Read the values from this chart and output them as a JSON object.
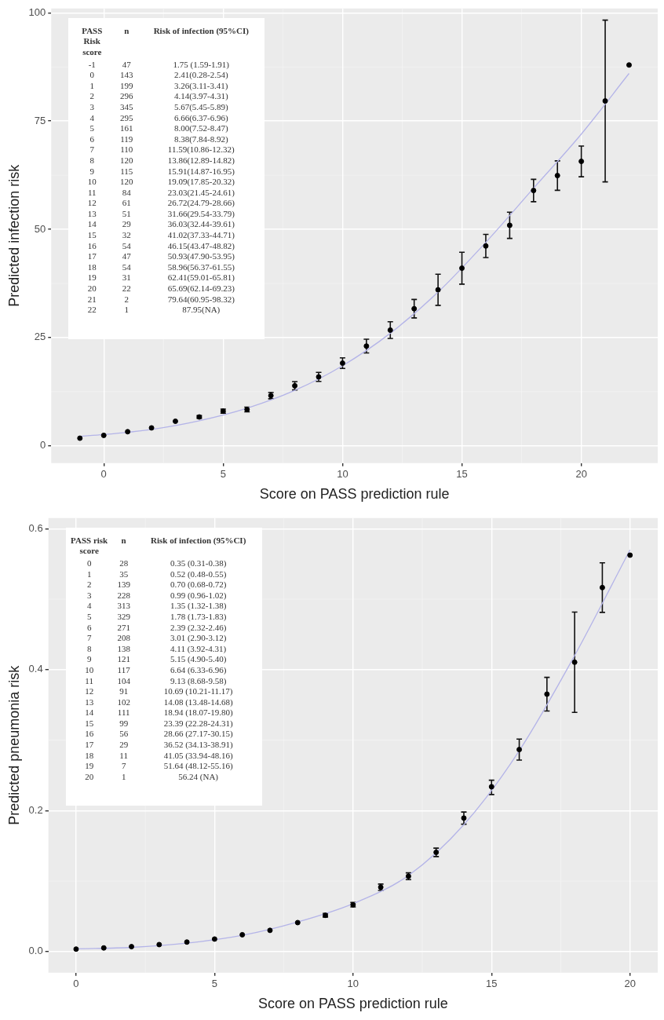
{
  "chart_data": [
    {
      "type": "scatter",
      "xlabel": "Score on PASS prediction rule",
      "ylabel": "Predicted infection risk",
      "xlim": [
        -2.2,
        23.2
      ],
      "xticks": [
        0,
        5,
        10,
        15,
        20
      ],
      "ylim": [
        -4,
        101
      ],
      "yticks": [
        0,
        25,
        50,
        75,
        100
      ],
      "grid": true,
      "legend": false,
      "series": [
        {
          "type": "scatter",
          "marker": "circle",
          "color": "#000000",
          "x": [
            -1,
            0,
            1,
            2,
            3,
            4,
            5,
            6,
            7,
            8,
            9,
            10,
            11,
            12,
            13,
            14,
            15,
            16,
            17,
            18,
            19,
            20,
            21,
            22
          ],
          "values": [
            1.75,
            2.41,
            3.26,
            4.14,
            5.67,
            6.66,
            8.0,
            8.38,
            11.59,
            13.86,
            15.91,
            19.09,
            23.03,
            26.72,
            31.66,
            36.03,
            41.02,
            46.15,
            50.93,
            58.96,
            62.41,
            65.69,
            79.64,
            87.95
          ],
          "errors": [
            [
              1.59,
              1.91
            ],
            null,
            [
              3.11,
              3.41
            ],
            [
              3.97,
              4.31
            ],
            [
              5.45,
              5.89
            ],
            [
              6.37,
              6.96
            ],
            [
              7.52,
              8.47
            ],
            [
              7.84,
              8.92
            ],
            [
              10.86,
              12.32
            ],
            [
              12.89,
              14.82
            ],
            [
              14.87,
              16.95
            ],
            [
              17.85,
              20.32
            ],
            [
              21.45,
              24.61
            ],
            [
              24.79,
              28.66
            ],
            [
              29.54,
              33.79
            ],
            [
              32.44,
              39.61
            ],
            [
              37.33,
              44.71
            ],
            [
              43.47,
              48.82
            ],
            [
              47.9,
              53.95
            ],
            [
              56.37,
              61.55
            ],
            [
              59.01,
              65.81
            ],
            [
              62.14,
              69.23
            ],
            [
              60.95,
              98.32
            ],
            null
          ]
        },
        {
          "type": "line",
          "marker": "none",
          "color": "#b4b4e8",
          "x": [
            -1,
            0,
            2,
            4,
            6,
            8,
            10,
            12,
            14,
            16,
            18,
            20,
            22
          ],
          "values": [
            2.2,
            2.6,
            3.8,
            5.8,
            8.7,
            12.8,
            18.5,
            26,
            35.5,
            47,
            59.5,
            72,
            86
          ]
        }
      ],
      "annotations": [
        "PASS Risk score",
        "n",
        "Risk of infection (95%CI)",
        "-1",
        "47",
        "1.75 (1.59-1.91)",
        "0",
        "143",
        "2.41(0.28-2.54)",
        "1",
        "199",
        "3.26(3.11-3.41)",
        "2",
        "296",
        "4.14(3.97-4.31)",
        "3",
        "345",
        "5.67(5.45-5.89)",
        "4",
        "295",
        "6.66(6.37-6.96)",
        "5",
        "161",
        "8.00(7.52-8.47)",
        "6",
        "119",
        "8.38(7.84-8.92)",
        "7",
        "110",
        "11.59(10.86-12.32)",
        "8",
        "120",
        "13.86(12.89-14.82)",
        "9",
        "115",
        "15.91(14.87-16.95)",
        "10",
        "120",
        "19.09(17.85-20.32)",
        "11",
        "84",
        "23.03(21.45-24.61)",
        "12",
        "61",
        "26.72(24.79-28.66)",
        "13",
        "51",
        "31.66(29.54-33.79)",
        "14",
        "29",
        "36.03(32.44-39.61)",
        "15",
        "32",
        "41.02(37.33-44.71)",
        "16",
        "54",
        "46.15(43.47-48.82)",
        "17",
        "47",
        "50.93(47.90-53.95)",
        "18",
        "54",
        "58.96(56.37-61.55)",
        "19",
        "31",
        "62.41(59.01-65.81)",
        "20",
        "22",
        "65.69(62.14-69.23)",
        "21",
        "2",
        "79.64(60.95-98.32)",
        "22",
        "1",
        "87.95(NA)"
      ]
    },
    {
      "type": "scatter",
      "xlabel": "Score on PASS prediction rule",
      "ylabel": "Predicted pneumonia risk",
      "xlim": [
        -1,
        21
      ],
      "xticks": [
        0,
        5,
        10,
        15,
        20
      ],
      "ylim": [
        -0.03,
        0.615
      ],
      "yticks": [
        {
          "value": 0,
          "label": "0.0"
        },
        {
          "value": 0.2,
          "label": "0.2"
        },
        {
          "value": 0.4,
          "label": "0.4"
        },
        {
          "value": 0.6,
          "label": "0.6"
        }
      ],
      "grid": true,
      "legend": false,
      "series": [
        {
          "type": "scatter",
          "marker": "circle",
          "color": "#000000",
          "x": [
            0,
            1,
            2,
            3,
            4,
            5,
            6,
            7,
            8,
            9,
            10,
            11,
            12,
            13,
            14,
            15,
            16,
            17,
            18,
            19,
            20
          ],
          "values": [
            0.0035,
            0.0052,
            0.007,
            0.0099,
            0.0135,
            0.0178,
            0.0239,
            0.0301,
            0.0411,
            0.0515,
            0.0664,
            0.0913,
            0.1069,
            0.1408,
            0.1894,
            0.2339,
            0.2866,
            0.3652,
            0.4105,
            0.5164,
            0.5624
          ],
          "errors": [
            null,
            null,
            null,
            null,
            null,
            null,
            null,
            null,
            null,
            [
              0.049,
              0.054
            ],
            [
              0.0633,
              0.0696
            ],
            [
              0.0868,
              0.0958
            ],
            [
              0.1021,
              0.1117
            ],
            [
              0.1348,
              0.1468
            ],
            [
              0.1807,
              0.198
            ],
            [
              0.2228,
              0.2431
            ],
            [
              0.2717,
              0.3015
            ],
            [
              0.3413,
              0.3891
            ],
            [
              0.3394,
              0.4816
            ],
            [
              0.4812,
              0.5516
            ],
            null
          ]
        },
        {
          "type": "line",
          "marker": "none",
          "color": "#b4b4e8",
          "x": [
            0,
            2,
            4,
            6,
            8,
            10,
            12,
            14,
            16,
            18,
            20
          ],
          "values": [
            0.004,
            0.006,
            0.012,
            0.023,
            0.042,
            0.068,
            0.108,
            0.18,
            0.285,
            0.42,
            0.57
          ]
        }
      ],
      "annotations": [
        "PASS risk score",
        "n",
        "Risk of infection (95%CI)",
        "0",
        "28",
        "0.35 (0.31-0.38)",
        "1",
        "35",
        "0.52 (0.48-0.55)",
        "2",
        "139",
        "0.70 (0.68-0.72)",
        "3",
        "228",
        "0.99 (0.96-1.02)",
        "4",
        "313",
        "1.35 (1.32-1.38)",
        "5",
        "329",
        "1.78 (1.73-1.83)",
        "6",
        "271",
        "2.39 (2.32-2.46)",
        "7",
        "208",
        "3.01 (2.90-3.12)",
        "8",
        "138",
        "4.11 (3.92-4.31)",
        "9",
        "121",
        "5.15 (4.90-5.40)",
        "10",
        "117",
        "6.64 (6.33-6.96)",
        "11",
        "104",
        "9.13 (8.68-9.58)",
        "12",
        "91",
        "10.69 (10.21-11.17)",
        "13",
        "102",
        "14.08 (13.48-14.68)",
        "14",
        "111",
        "18.94 (18.07-19.80)",
        "15",
        "99",
        "23.39 (22.28-24.31)",
        "16",
        "56",
        "28.66 (27.17-30.15)",
        "17",
        "29",
        "36.52 (34.13-38.91)",
        "18",
        "11",
        "41.05 (33.94-48.16)",
        "19",
        "7",
        "51.64 (48.12-55.16)",
        "20",
        "1",
        "56.24 (NA)"
      ]
    }
  ]
}
